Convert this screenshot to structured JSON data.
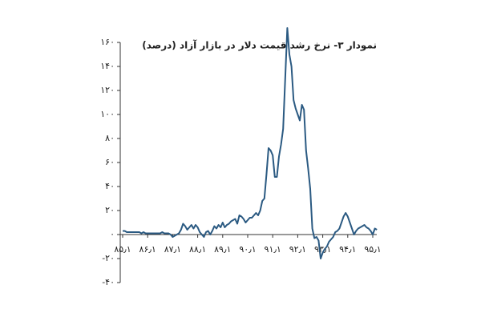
{
  "chart_data": {
    "type": "line",
    "title": "نمودار ۳- نرخ رشد قیمت دلار در بازار آزاد (درصد)",
    "categories": [
      "۸۵٫۱",
      null,
      null,
      null,
      null,
      null,
      null,
      null,
      null,
      null,
      null,
      null,
      "۸۶٫۱",
      null,
      null,
      null,
      null,
      null,
      null,
      null,
      null,
      null,
      null,
      null,
      "۸۷٫۱",
      null,
      null,
      null,
      null,
      null,
      null,
      null,
      null,
      null,
      null,
      null,
      "۸۸٫۱",
      null,
      null,
      null,
      null,
      null,
      null,
      null,
      null,
      null,
      null,
      null,
      "۸۹٫۱",
      null,
      null,
      null,
      null,
      null,
      null,
      null,
      null,
      null,
      null,
      null,
      "۹۰٫۱",
      null,
      null,
      null,
      null,
      null,
      null,
      null,
      null,
      null,
      null,
      null,
      "۹۱٫۱",
      null,
      null,
      null,
      null,
      null,
      null,
      null,
      null,
      null,
      null,
      null,
      "۹۲٫۱",
      null,
      null,
      null,
      null,
      null,
      null,
      null,
      null,
      null,
      null,
      null,
      "۹۳٫۱",
      null,
      null,
      null,
      null,
      null,
      null,
      null,
      null,
      null,
      null,
      null,
      "۹۴٫۱",
      null,
      null,
      null,
      null,
      null,
      null,
      null,
      null,
      null,
      null,
      null,
      "۹۵٫۱",
      null,
      null
    ],
    "values": [
      3,
      3,
      2,
      2,
      2,
      2,
      2,
      2,
      2,
      1,
      2,
      1,
      1,
      1,
      1,
      1,
      1,
      1,
      1,
      2,
      1,
      1,
      1,
      0,
      -2,
      -1,
      0,
      1,
      4,
      9,
      7,
      4,
      6,
      8,
      5,
      8,
      6,
      2,
      0,
      -2,
      2,
      3,
      0,
      3,
      7,
      5,
      8,
      6,
      10,
      6,
      8,
      9,
      11,
      12,
      13,
      9,
      16,
      15,
      13,
      10,
      12,
      14,
      14,
      16,
      18,
      16,
      20,
      28,
      30,
      50,
      72,
      70,
      66,
      48,
      48,
      65,
      75,
      88,
      130,
      172,
      150,
      140,
      112,
      105,
      100,
      95,
      108,
      104,
      70,
      55,
      38,
      5,
      -3,
      -2,
      -5,
      -20,
      -15,
      -12,
      -10,
      -6,
      -4,
      -2,
      2,
      3,
      5,
      10,
      15,
      18,
      15,
      10,
      5,
      0,
      3,
      5,
      6,
      7,
      8,
      6,
      5,
      3,
      0,
      5,
      4
    ],
    "color": "#2b5a82",
    "ylim": [
      -40,
      160
    ],
    "yticks": [
      {
        "value": -40,
        "label": "-۴۰"
      },
      {
        "value": -20,
        "label": "-۲۰"
      },
      {
        "value": 0,
        "label": "۰"
      },
      {
        "value": 20,
        "label": "۲۰"
      },
      {
        "value": 40,
        "label": "۴۰"
      },
      {
        "value": 60,
        "label": "۶۰"
      },
      {
        "value": 80,
        "label": "۸۰"
      },
      {
        "value": 100,
        "label": "۱۰۰"
      },
      {
        "value": 120,
        "label": "۱۲۰"
      },
      {
        "value": 140,
        "label": "۱۴۰"
      },
      {
        "value": 160,
        "label": "۱۶۰"
      }
    ]
  }
}
